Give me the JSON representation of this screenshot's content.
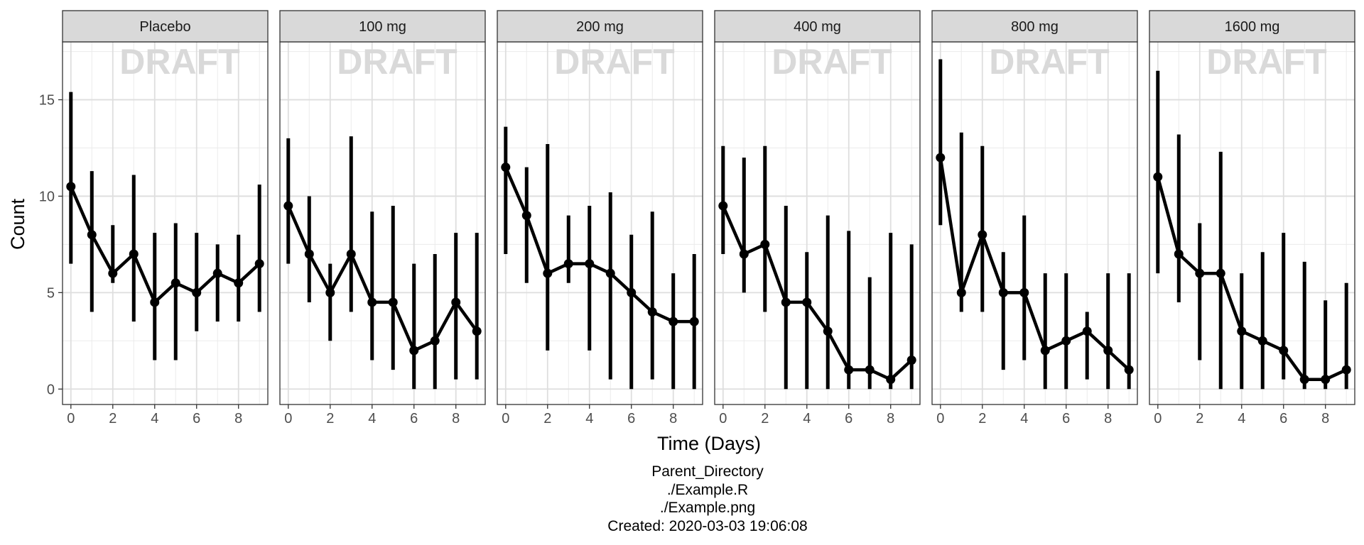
{
  "chart_data": {
    "type": "line",
    "facet": "dose",
    "xlabel": "Time (Days)",
    "ylabel": "Count",
    "xlim": [
      -0.4,
      9.4
    ],
    "ylim": [
      -0.8,
      18.0
    ],
    "xticks": [
      0,
      2,
      4,
      6,
      8
    ],
    "yticks": [
      0,
      5,
      10,
      15
    ],
    "watermark": "DRAFT",
    "grid": true,
    "x": [
      0,
      1,
      2,
      3,
      4,
      5,
      6,
      7,
      8,
      9
    ],
    "colors": {
      "line": "#000000",
      "strip": "#d9d9d9",
      "grid": "#dedede",
      "watermark": "#d9d9d9"
    },
    "panels": [
      {
        "label": "Placebo",
        "y": [
          10.5,
          8.0,
          6.0,
          7.0,
          4.5,
          5.5,
          5.0,
          6.0,
          5.5,
          6.5
        ],
        "lower": [
          6.5,
          4.0,
          5.5,
          3.5,
          1.5,
          1.5,
          3.0,
          3.5,
          3.5,
          4.0
        ],
        "upper": [
          15.4,
          11.3,
          8.5,
          11.1,
          8.1,
          8.6,
          8.1,
          7.5,
          8.0,
          10.6
        ]
      },
      {
        "label": "100 mg",
        "y": [
          9.5,
          7.0,
          5.0,
          7.0,
          4.5,
          4.5,
          2.0,
          2.5,
          4.5,
          3.0
        ],
        "lower": [
          6.5,
          4.5,
          2.5,
          4.0,
          1.5,
          1.0,
          0.0,
          0.0,
          0.5,
          0.5
        ],
        "upper": [
          13.0,
          10.0,
          6.5,
          13.1,
          9.2,
          9.5,
          6.5,
          7.0,
          8.1,
          8.1
        ]
      },
      {
        "label": "200 mg",
        "y": [
          11.5,
          9.0,
          6.0,
          6.5,
          6.5,
          6.0,
          5.0,
          4.0,
          3.5,
          3.5
        ],
        "lower": [
          7.0,
          5.5,
          2.0,
          5.5,
          2.0,
          0.5,
          0.0,
          0.5,
          0.0,
          0.0
        ],
        "upper": [
          13.6,
          11.5,
          12.7,
          9.0,
          9.5,
          10.2,
          8.0,
          9.2,
          6.0,
          7.0
        ]
      },
      {
        "label": "400 mg",
        "y": [
          9.5,
          7.0,
          7.5,
          4.5,
          4.5,
          3.0,
          1.0,
          1.0,
          0.5,
          1.5
        ],
        "lower": [
          7.0,
          5.0,
          4.0,
          0.0,
          0.0,
          0.0,
          0.0,
          0.0,
          0.0,
          0.0
        ],
        "upper": [
          12.6,
          12.0,
          12.6,
          9.5,
          7.1,
          9.0,
          8.2,
          5.8,
          8.1,
          7.5
        ]
      },
      {
        "label": "800 mg",
        "y": [
          12.0,
          5.0,
          8.0,
          5.0,
          5.0,
          2.0,
          2.5,
          3.0,
          2.0,
          1.0
        ],
        "lower": [
          8.5,
          4.0,
          4.0,
          1.0,
          1.5,
          0.0,
          0.0,
          0.5,
          0.0,
          0.0
        ],
        "upper": [
          17.1,
          13.3,
          12.6,
          7.1,
          9.0,
          6.0,
          6.0,
          4.0,
          6.0,
          6.0
        ]
      },
      {
        "label": "1600 mg",
        "y": [
          11.0,
          7.0,
          6.0,
          6.0,
          3.0,
          2.5,
          2.0,
          0.5,
          0.5,
          1.0
        ],
        "lower": [
          6.0,
          4.5,
          1.5,
          0.0,
          0.0,
          0.0,
          0.5,
          0.0,
          0.0,
          0.0
        ],
        "upper": [
          16.5,
          13.2,
          8.6,
          12.3,
          6.0,
          7.1,
          8.1,
          6.6,
          4.6,
          5.5
        ]
      }
    ]
  },
  "caption": {
    "line1": "Parent_Directory",
    "line2": "./Example.R",
    "line3": "./Example.png",
    "line4": "Created: 2020-03-03 19:06:08"
  }
}
